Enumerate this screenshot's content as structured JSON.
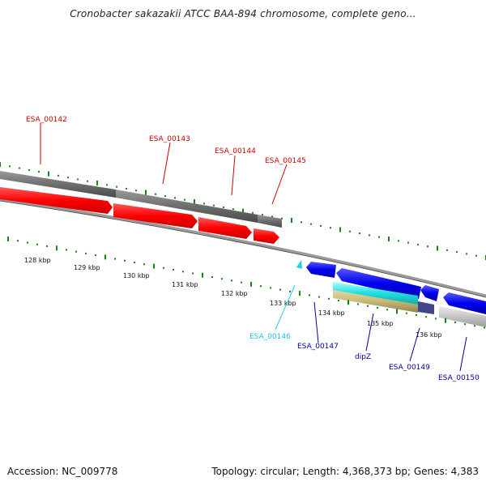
{
  "title": "Cronobacter sakazakii ATCC BAA-894 chromosome, complete geno...",
  "colors": {
    "top_track": "#ff0000",
    "bottom_track": "#0000ee",
    "cyan_feature": "#22dddd",
    "olive_feature": "#c8b878",
    "gray_gene": "#777777",
    "light_gray_gene": "#bbbbbb",
    "tick_green": "#118811",
    "label_red": "#cc0000",
    "label_blue": "#000099",
    "label_cyan": "#22bbdd"
  },
  "top_genes": [
    {
      "label": "ESA_00142",
      "color": "red"
    },
    {
      "label": "ESA_00143",
      "color": "red"
    },
    {
      "label": "ESA_00144",
      "color": "red"
    },
    {
      "label": "ESA_00145",
      "color": "red"
    }
  ],
  "bottom_genes": [
    {
      "label": "ESA_00146",
      "color": "cyan"
    },
    {
      "label": "ESA_00147",
      "color": "blue"
    },
    {
      "label": "dipZ",
      "color": "blue"
    },
    {
      "label": "ESA_00149",
      "color": "blue"
    },
    {
      "label": "ESA_00150",
      "color": "blue"
    }
  ],
  "scale_labels": [
    "128 kbp",
    "129 kbp",
    "130 kbp",
    "131 kbp",
    "132 kbp",
    "133 kbp",
    "134 kbp",
    "135 kbp",
    "136 kbp"
  ],
  "footer": {
    "accession": "Accession: NC_009778",
    "summary": "Topology: circular; Length: 4,368,373 bp; Genes: 4,383"
  }
}
